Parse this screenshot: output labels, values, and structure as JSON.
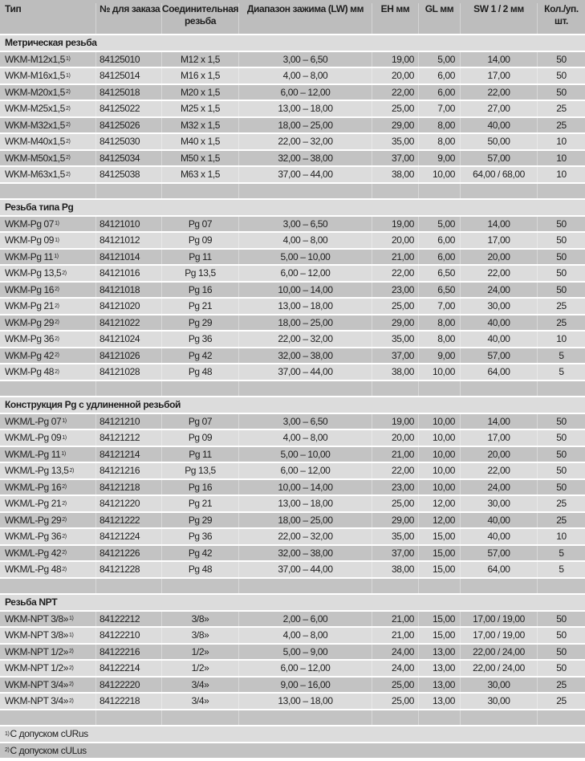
{
  "header": [
    "Тип",
    "№ для заказа",
    "Соединительная резьба",
    "Диапазон зажима (LW) мм",
    "EH мм",
    "GL мм",
    "SW 1 / 2 мм",
    "Кол./уп. шт."
  ],
  "sections": [
    {
      "title": "Метрическая резьба",
      "rows": [
        {
          "type": "WKM-M12x1,5",
          "sup": "1)",
          "order": "84125010",
          "thread": "M12 x 1,5",
          "range": "3,00 – 6,50",
          "eh": "19,00",
          "gl": "5,00",
          "sw": "14,00",
          "qty": "50"
        },
        {
          "type": "WKM-M16x1,5",
          "sup": "1)",
          "order": "84125014",
          "thread": "M16 x 1,5",
          "range": "4,00 – 8,00",
          "eh": "20,00",
          "gl": "6,00",
          "sw": "17,00",
          "qty": "50"
        },
        {
          "type": "WKM-M20x1,5",
          "sup": "2)",
          "order": "84125018",
          "thread": "M20 x 1,5",
          "range": "6,00 – 12,00",
          "eh": "22,00",
          "gl": "6,00",
          "sw": "22,00",
          "qty": "50"
        },
        {
          "type": "WKM-M25x1,5",
          "sup": "2)",
          "order": "84125022",
          "thread": "M25 x 1,5",
          "range": "13,00 – 18,00",
          "eh": "25,00",
          "gl": "7,00",
          "sw": "27,00",
          "qty": "25"
        },
        {
          "type": "WKM-M32x1,5",
          "sup": "2)",
          "order": "84125026",
          "thread": "M32 x 1,5",
          "range": "18,00 – 25,00",
          "eh": "29,00",
          "gl": "8,00",
          "sw": "40,00",
          "qty": "25"
        },
        {
          "type": "WKM-M40x1,5",
          "sup": "2)",
          "order": "84125030",
          "thread": "M40 x 1,5",
          "range": "22,00 – 32,00",
          "eh": "35,00",
          "gl": "8,00",
          "sw": "50,00",
          "qty": "10"
        },
        {
          "type": "WKM-M50x1,5",
          "sup": "2)",
          "order": "84125034",
          "thread": "M50 x 1,5",
          "range": "32,00 – 38,00",
          "eh": "37,00",
          "gl": "9,00",
          "sw": "57,00",
          "qty": "10"
        },
        {
          "type": "WKM-M63x1,5",
          "sup": "2)",
          "order": "84125038",
          "thread": "M63 x 1,5",
          "range": "37,00 – 44,00",
          "eh": "38,00",
          "gl": "10,00",
          "sw": "64,00 / 68,00",
          "qty": "10"
        }
      ]
    },
    {
      "title": "Резьба типа Pg",
      "rows": [
        {
          "type": "WKM-Pg 07",
          "sup": "1)",
          "order": "84121010",
          "thread": "Pg 07",
          "range": "3,00 – 6,50",
          "eh": "19,00",
          "gl": "5,00",
          "sw": "14,00",
          "qty": "50"
        },
        {
          "type": "WKM-Pg 09",
          "sup": "1)",
          "order": "84121012",
          "thread": "Pg 09",
          "range": "4,00 – 8,00",
          "eh": "20,00",
          "gl": "6,00",
          "sw": "17,00",
          "qty": "50"
        },
        {
          "type": "WKM-Pg 11",
          "sup": "1)",
          "order": "84121014",
          "thread": "Pg 11",
          "range": "5,00 – 10,00",
          "eh": "21,00",
          "gl": "6,00",
          "sw": "20,00",
          "qty": "50"
        },
        {
          "type": "WKM-Pg 13,5",
          "sup": "2)",
          "order": "84121016",
          "thread": "Pg 13,5",
          "range": "6,00 – 12,00",
          "eh": "22,00",
          "gl": "6,50",
          "sw": "22,00",
          "qty": "50"
        },
        {
          "type": "WKM-Pg 16",
          "sup": "2)",
          "order": "84121018",
          "thread": "Pg 16",
          "range": "10,00 – 14,00",
          "eh": "23,00",
          "gl": "6,50",
          "sw": "24,00",
          "qty": "50"
        },
        {
          "type": "WKM-Pg 21",
          "sup": "2)",
          "order": "84121020",
          "thread": "Pg 21",
          "range": "13,00 – 18,00",
          "eh": "25,00",
          "gl": "7,00",
          "sw": "30,00",
          "qty": "25"
        },
        {
          "type": "WKM-Pg 29",
          "sup": "2)",
          "order": "84121022",
          "thread": "Pg 29",
          "range": "18,00 – 25,00",
          "eh": "29,00",
          "gl": "8,00",
          "sw": "40,00",
          "qty": "25"
        },
        {
          "type": "WKM-Pg 36",
          "sup": "2)",
          "order": "84121024",
          "thread": "Pg 36",
          "range": "22,00 – 32,00",
          "eh": "35,00",
          "gl": "8,00",
          "sw": "40,00",
          "qty": "10"
        },
        {
          "type": "WKM-Pg 42",
          "sup": "2)",
          "order": "84121026",
          "thread": "Pg 42",
          "range": "32,00 – 38,00",
          "eh": "37,00",
          "gl": "9,00",
          "sw": "57,00",
          "qty": "5"
        },
        {
          "type": "WKM-Pg 48",
          "sup": "2)",
          "order": "84121028",
          "thread": "Pg 48",
          "range": "37,00 – 44,00",
          "eh": "38,00",
          "gl": "10,00",
          "sw": "64,00",
          "qty": "5"
        }
      ]
    },
    {
      "title": "Конструкция Pg с удлиненной резьбой",
      "rows": [
        {
          "type": "WKM/L-Pg 07",
          "sup": "1)",
          "order": "84121210",
          "thread": "Pg 07",
          "range": "3,00 – 6,50",
          "eh": "19,00",
          "gl": "10,00",
          "sw": "14,00",
          "qty": "50"
        },
        {
          "type": "WKM/L-Pg 09",
          "sup": "1)",
          "order": "84121212",
          "thread": "Pg 09",
          "range": "4,00 – 8,00",
          "eh": "20,00",
          "gl": "10,00",
          "sw": "17,00",
          "qty": "50"
        },
        {
          "type": "WKM/L-Pg 11",
          "sup": "1)",
          "order": "84121214",
          "thread": "Pg 11",
          "range": "5,00 – 10,00",
          "eh": "21,00",
          "gl": "10,00",
          "sw": "20,00",
          "qty": "50"
        },
        {
          "type": "WKM/L-Pg 13,5",
          "sup": "2)",
          "order": "84121216",
          "thread": "Pg 13,5",
          "range": "6,00 – 12,00",
          "eh": "22,00",
          "gl": "10,00",
          "sw": "22,00",
          "qty": "50"
        },
        {
          "type": "WKM/L-Pg 16",
          "sup": "2)",
          "order": "84121218",
          "thread": "Pg 16",
          "range": "10,00 – 14,00",
          "eh": "23,00",
          "gl": "10,00",
          "sw": "24,00",
          "qty": "50"
        },
        {
          "type": "WKM/L-Pg 21",
          "sup": "2)",
          "order": "84121220",
          "thread": "Pg 21",
          "range": "13,00 – 18,00",
          "eh": "25,00",
          "gl": "12,00",
          "sw": "30,00",
          "qty": "25"
        },
        {
          "type": "WKM/L-Pg 29",
          "sup": "2)",
          "order": "84121222",
          "thread": "Pg 29",
          "range": "18,00 – 25,00",
          "eh": "29,00",
          "gl": "12,00",
          "sw": "40,00",
          "qty": "25"
        },
        {
          "type": "WKM/L-Pg 36",
          "sup": "2)",
          "order": "84121224",
          "thread": "Pg 36",
          "range": "22,00 – 32,00",
          "eh": "35,00",
          "gl": "15,00",
          "sw": "40,00",
          "qty": "10"
        },
        {
          "type": "WKM/L-Pg 42",
          "sup": "2)",
          "order": "84121226",
          "thread": "Pg 42",
          "range": "32,00 – 38,00",
          "eh": "37,00",
          "gl": "15,00",
          "sw": "57,00",
          "qty": "5"
        },
        {
          "type": "WKM/L-Pg 48",
          "sup": "2)",
          "order": "84121228",
          "thread": "Pg 48",
          "range": "37,00 – 44,00",
          "eh": "38,00",
          "gl": "15,00",
          "sw": "64,00",
          "qty": "5"
        }
      ]
    },
    {
      "title": "Резьба NPT",
      "rows": [
        {
          "type": "WKM-NPT 3/8»",
          "sup": "1)",
          "order": "84122212",
          "thread": "3/8»",
          "range": "2,00 – 6,00",
          "eh": "21,00",
          "gl": "15,00",
          "sw": "17,00 / 19,00",
          "qty": "50"
        },
        {
          "type": "WKM-NPT 3/8»",
          "sup": "1)",
          "order": "84122210",
          "thread": "3/8»",
          "range": "4,00 – 8,00",
          "eh": "21,00",
          "gl": "15,00",
          "sw": "17,00 / 19,00",
          "qty": "50"
        },
        {
          "type": "WKM-NPT 1/2»",
          "sup": "2)",
          "order": "84122216",
          "thread": "1/2»",
          "range": "5,00 – 9,00",
          "eh": "24,00",
          "gl": "13,00",
          "sw": "22,00 / 24,00",
          "qty": "50"
        },
        {
          "type": "WKM-NPT 1/2»",
          "sup": "2)",
          "order": "84122214",
          "thread": "1/2»",
          "range": "6,00 – 12,00",
          "eh": "24,00",
          "gl": "13,00",
          "sw": "22,00 / 24,00",
          "qty": "50"
        },
        {
          "type": "WKM-NPT 3/4»",
          "sup": "2)",
          "order": "84122220",
          "thread": "3/4»",
          "range": "9,00 – 16,00",
          "eh": "25,00",
          "gl": "13,00",
          "sw": "30,00",
          "qty": "25"
        },
        {
          "type": "WKM-NPT 3/4»",
          "sup": "2)",
          "order": "84122218",
          "thread": "3/4»",
          "range": "13,00 – 18,00",
          "eh": "25,00",
          "gl": "13,00",
          "sw": "30,00",
          "qty": "25"
        }
      ]
    }
  ],
  "footnotes": [
    {
      "sup": "1)",
      "text": "С допуском cURus"
    },
    {
      "sup": "2)",
      "text": "С допуском cULus"
    }
  ]
}
